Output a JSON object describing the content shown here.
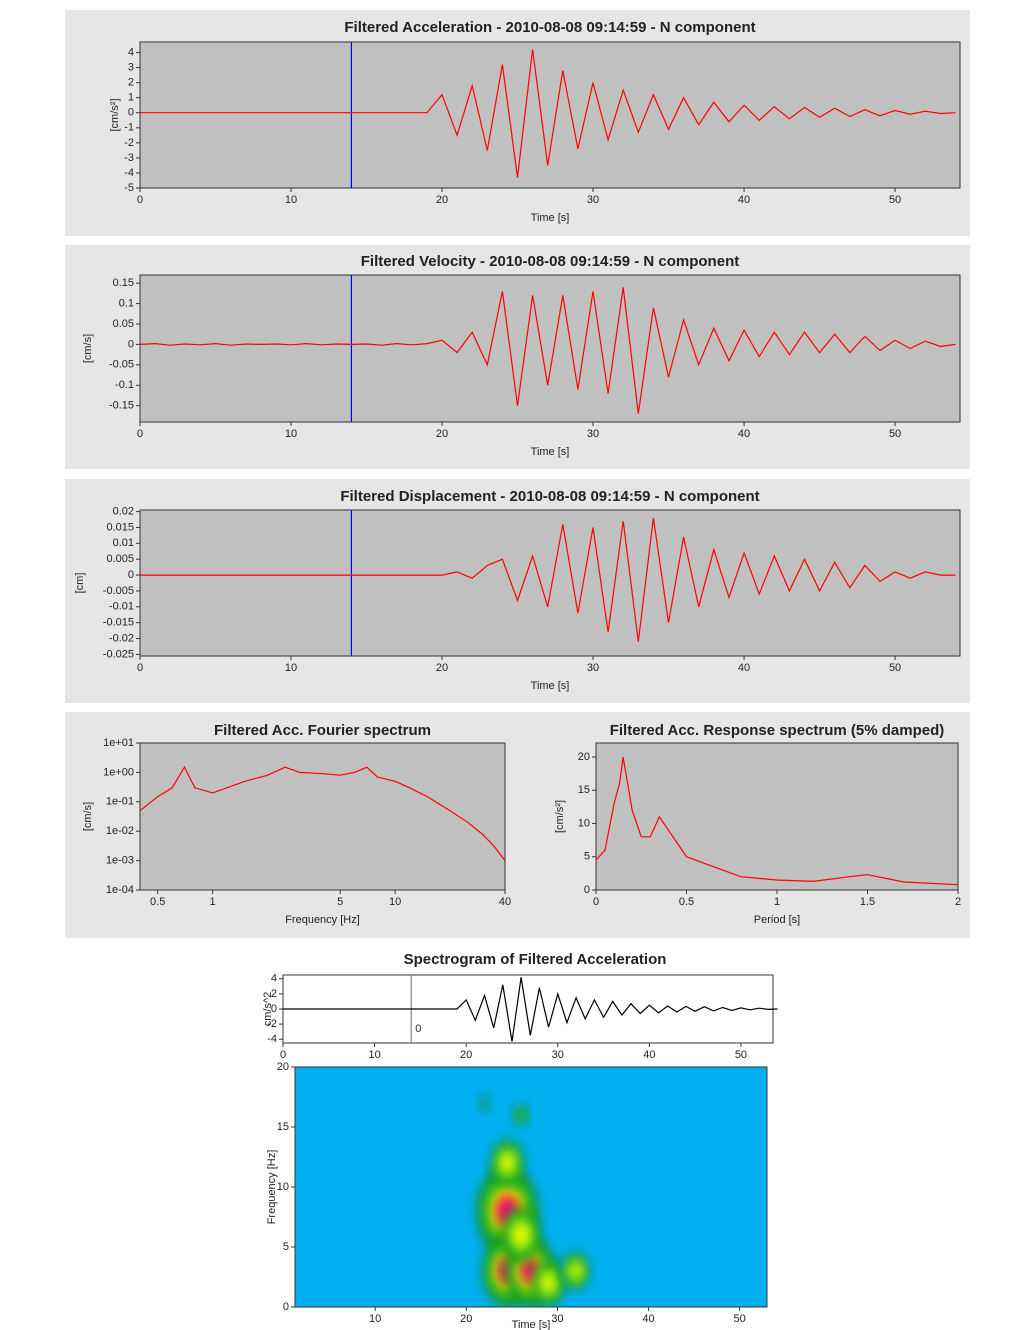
{
  "chart_data": [
    {
      "type": "line",
      "title": "Filtered Acceleration - 2010-08-08 09:14:59 - N component",
      "xlabel": "Time [s]",
      "ylabel": "[cm/s²]",
      "x": [
        0,
        1,
        2,
        3,
        4,
        5,
        6,
        7,
        8,
        9,
        10,
        11,
        12,
        13,
        14,
        15,
        16,
        17,
        18,
        19,
        20,
        21,
        22,
        23,
        24,
        25,
        26,
        27,
        28,
        29,
        30,
        31,
        32,
        33,
        34,
        35,
        36,
        37,
        38,
        39,
        40,
        41,
        42,
        43,
        44,
        45,
        46,
        47,
        48,
        49,
        50,
        51,
        52,
        53,
        54
      ],
      "values": [
        0,
        0,
        0,
        0,
        0,
        0,
        0,
        0,
        0,
        0,
        0,
        0,
        0,
        0,
        0,
        0,
        0,
        0,
        0,
        0,
        1.2,
        -1.5,
        1.8,
        -2.5,
        3.2,
        -4.3,
        4.2,
        -3.5,
        2.8,
        -2.4,
        2.0,
        -1.8,
        1.5,
        -1.3,
        1.2,
        -1.1,
        1.0,
        -0.8,
        0.7,
        -0.6,
        0.5,
        -0.5,
        0.4,
        -0.4,
        0.35,
        -0.3,
        0.3,
        -0.25,
        0.2,
        -0.2,
        0.15,
        -0.1,
        0.1,
        -0.05,
        0
      ],
      "color": "#ff0000",
      "marker_x": 14,
      "marker_color": "#0000ff",
      "plot_background": "#c0c0c0",
      "xlim": [
        0,
        54.3
      ],
      "xticks": [
        0,
        10,
        20,
        30,
        40,
        50
      ],
      "ylim": [
        -5,
        4.7
      ],
      "yticks": [
        4,
        3,
        2,
        1,
        0,
        -1,
        -2,
        -3,
        -4,
        -5
      ]
    },
    {
      "type": "line",
      "title": "Filtered Velocity - 2010-08-08 09:14:59 - N component",
      "xlabel": "Time [s]",
      "ylabel": "[cm/s]",
      "x": [
        0,
        1,
        2,
        3,
        4,
        5,
        6,
        7,
        8,
        9,
        10,
        11,
        12,
        13,
        14,
        15,
        16,
        17,
        18,
        19,
        20,
        21,
        22,
        23,
        24,
        25,
        26,
        27,
        28,
        29,
        30,
        31,
        32,
        33,
        34,
        35,
        36,
        37,
        38,
        39,
        40,
        41,
        42,
        43,
        44,
        45,
        46,
        47,
        48,
        49,
        50,
        51,
        52,
        53,
        54
      ],
      "values": [
        0,
        0.002,
        -0.002,
        0.001,
        -0.001,
        0.002,
        -0.002,
        0.001,
        0,
        0.001,
        -0.001,
        0.002,
        -0.001,
        0.001,
        0,
        0.001,
        -0.002,
        0.002,
        -0.001,
        0.002,
        0.01,
        -0.02,
        0.03,
        -0.05,
        0.13,
        -0.15,
        0.12,
        -0.1,
        0.12,
        -0.11,
        0.13,
        -0.12,
        0.14,
        -0.17,
        0.09,
        -0.08,
        0.06,
        -0.05,
        0.04,
        -0.04,
        0.035,
        -0.03,
        0.03,
        -0.025,
        0.03,
        -0.02,
        0.025,
        -0.02,
        0.02,
        -0.015,
        0.01,
        -0.01,
        0.008,
        -0.005,
        0
      ],
      "color": "#ff0000",
      "marker_x": 14,
      "marker_color": "#0000ff",
      "plot_background": "#c0c0c0",
      "xlim": [
        0,
        54.3
      ],
      "xticks": [
        0,
        10,
        20,
        30,
        40,
        50
      ],
      "ylim": [
        -0.19,
        0.17
      ],
      "yticks": [
        0.15,
        0.1,
        0.05,
        0,
        -0.05,
        -0.1,
        -0.15
      ]
    },
    {
      "type": "line",
      "title": "Filtered Displacement - 2010-08-08 09:14:59 - N component",
      "xlabel": "Time [s]",
      "ylabel": "[cm]",
      "x": [
        0,
        1,
        2,
        3,
        4,
        5,
        6,
        7,
        8,
        9,
        10,
        11,
        12,
        13,
        14,
        15,
        16,
        17,
        18,
        19,
        20,
        21,
        22,
        23,
        24,
        25,
        26,
        27,
        28,
        29,
        30,
        31,
        32,
        33,
        34,
        35,
        36,
        37,
        38,
        39,
        40,
        41,
        42,
        43,
        44,
        45,
        46,
        47,
        48,
        49,
        50,
        51,
        52,
        53,
        54
      ],
      "values": [
        0,
        0,
        0,
        0,
        0,
        0,
        0,
        0,
        0,
        0,
        0,
        0,
        0,
        0,
        0,
        0,
        0,
        0,
        0,
        0,
        0,
        0.001,
        -0.001,
        0.003,
        0.005,
        -0.008,
        0.006,
        -0.01,
        0.016,
        -0.012,
        0.015,
        -0.018,
        0.017,
        -0.021,
        0.018,
        -0.015,
        0.012,
        -0.01,
        0.008,
        -0.007,
        0.007,
        -0.006,
        0.006,
        -0.005,
        0.005,
        -0.005,
        0.004,
        -0.004,
        0.003,
        -0.002,
        0.001,
        -0.001,
        0.001,
        0,
        0
      ],
      "color": "#ff0000",
      "marker_x": 14,
      "marker_color": "#0000ff",
      "plot_background": "#c0c0c0",
      "xlim": [
        0,
        54.3
      ],
      "xticks": [
        0,
        10,
        20,
        30,
        40,
        50
      ],
      "ylim": [
        -0.0255,
        0.0205
      ],
      "yticks": [
        0.02,
        0.015,
        0.01,
        0.005,
        0,
        -0.005,
        -0.01,
        -0.015,
        -0.02,
        -0.025
      ]
    },
    {
      "type": "line",
      "title": "Filtered Acc. Fourier spectrum",
      "xlabel": "Frequency [Hz]",
      "ylabel": "[cm/s]",
      "log_x": true,
      "log_y": true,
      "x": [
        0.4,
        0.5,
        0.6,
        0.7,
        0.8,
        1,
        1.5,
        2,
        2.5,
        3,
        4,
        5,
        6,
        7,
        8,
        10,
        12,
        15,
        20,
        25,
        30,
        35,
        40
      ],
      "values": [
        0.05,
        0.15,
        0.3,
        1.5,
        0.3,
        0.2,
        0.5,
        0.8,
        1.5,
        1.0,
        0.9,
        0.8,
        1.0,
        1.5,
        0.7,
        0.5,
        0.3,
        0.15,
        0.05,
        0.02,
        0.008,
        0.003,
        0.001
      ],
      "color": "#ff0000",
      "plot_background": "#c0c0c0",
      "xlim": [
        0.4,
        40
      ],
      "xticks": [
        0.5,
        1,
        5,
        10,
        40
      ],
      "ylim": [
        0.0001,
        10
      ],
      "yticks": [
        {
          "value": 10,
          "label": "1e+01"
        },
        {
          "value": 1,
          "label": "1e+00"
        },
        {
          "value": 0.1,
          "label": "1e-01"
        },
        {
          "value": 0.01,
          "label": "1e-02"
        },
        {
          "value": 0.001,
          "label": "1e-03"
        },
        {
          "value": 0.0001,
          "label": "1e-04"
        }
      ]
    },
    {
      "type": "line",
      "title": "Filtered Acc. Response spectrum (5% damped)",
      "xlabel": "Period [s]",
      "ylabel": "[cm/s²]",
      "x": [
        0,
        0.05,
        0.1,
        0.13,
        0.15,
        0.2,
        0.25,
        0.3,
        0.35,
        0.4,
        0.5,
        0.6,
        0.8,
        1,
        1.2,
        1.4,
        1.5,
        1.7,
        2
      ],
      "values": [
        4.5,
        6,
        13,
        16,
        20,
        12,
        8,
        8,
        11,
        9,
        5,
        4,
        2,
        1.5,
        1.3,
        2,
        2.3,
        1.2,
        0.8
      ],
      "color": "#ff0000",
      "plot_background": "#c0c0c0",
      "xlim": [
        0,
        2
      ],
      "xticks": [
        0,
        0.5,
        1,
        1.5,
        2
      ],
      "ylim": [
        0,
        22.1
      ],
      "yticks": [
        0,
        5,
        10,
        15,
        20
      ]
    },
    {
      "type": "line",
      "title": "Spectrogram of Filtered Acceleration",
      "ylabel": "cm/s^2",
      "x": [
        0,
        1,
        2,
        3,
        4,
        5,
        6,
        7,
        8,
        9,
        10,
        11,
        12,
        13,
        14,
        15,
        16,
        17,
        18,
        19,
        20,
        21,
        22,
        23,
        24,
        25,
        26,
        27,
        28,
        29,
        30,
        31,
        32,
        33,
        34,
        35,
        36,
        37,
        38,
        39,
        40,
        41,
        42,
        43,
        44,
        45,
        46,
        47,
        48,
        49,
        50,
        51,
        52,
        53,
        54
      ],
      "values": [
        0,
        0,
        0,
        0,
        0,
        0,
        0,
        0,
        0,
        0,
        0,
        0,
        0,
        0,
        0,
        0,
        0,
        0,
        0,
        0,
        1.2,
        -1.5,
        1.8,
        -2.5,
        3.2,
        -4.3,
        4.2,
        -3.5,
        2.8,
        -2.4,
        2.0,
        -1.8,
        1.5,
        -1.3,
        1.2,
        -1.1,
        1.0,
        -0.8,
        0.7,
        -0.6,
        0.5,
        -0.5,
        0.4,
        -0.4,
        0.35,
        -0.3,
        0.3,
        -0.25,
        0.2,
        -0.2,
        0.15,
        -0.1,
        0.1,
        -0.05,
        0
      ],
      "color": "#000000",
      "marker_x": 14,
      "marker_label": "0",
      "marker_color": "#888888",
      "plot_background": "#ffffff",
      "xlim": [
        0,
        53.5
      ],
      "xticks": [
        0,
        10,
        20,
        30,
        40,
        50
      ],
      "ylim": [
        -4.5,
        4.5
      ],
      "yticks": [
        -4,
        -2,
        0,
        2,
        4
      ]
    },
    {
      "type": "heatmap",
      "xlabel": "Time [s]",
      "ylabel": "Frequency [Hz]",
      "plot_background": "#00b0f0",
      "x": [
        24.5,
        24.5,
        27,
        24.5,
        26,
        29,
        32,
        26,
        22
      ],
      "y": [
        8,
        3,
        3,
        12,
        6,
        2,
        3,
        16,
        17
      ],
      "values": [
        1,
        0.8,
        0.8,
        0.5,
        0.6,
        0.5,
        0.4,
        0.2,
        0.15
      ],
      "xlim": [
        1.2,
        53
      ],
      "xticks": [
        10,
        20,
        30,
        40,
        50
      ],
      "ylim": [
        0,
        20
      ],
      "yticks": [
        0,
        5,
        10,
        15,
        20
      ]
    }
  ]
}
